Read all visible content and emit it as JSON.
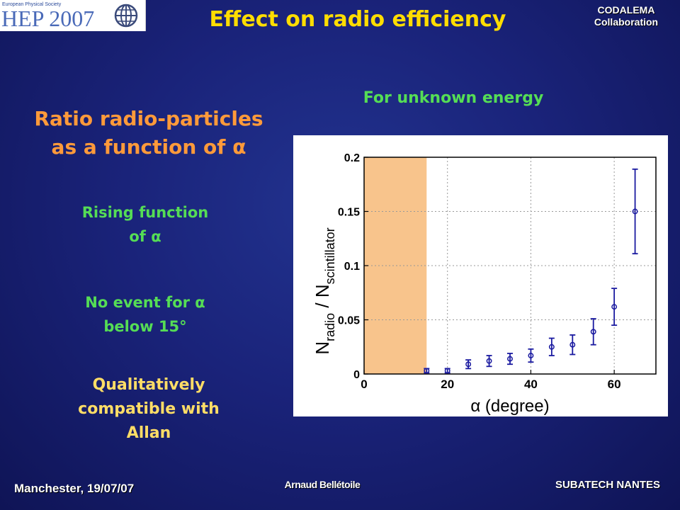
{
  "header": {
    "logo_society": "European Physical Society",
    "logo_text": "HEP 2007",
    "title": "Effect on radio efficiency",
    "collab_line1": "CODALEMA",
    "collab_line2": "Collaboration"
  },
  "left": {
    "heading_line1": "Ratio radio-particles",
    "heading_line2": "as a function of α",
    "rising_line1": "Rising function",
    "rising_line2": "of α",
    "noevent_line1": "No event for α",
    "noevent_line2": "below 15°",
    "qual_line1": "Qualitatively",
    "qual_line2": "compatible with",
    "qual_line3": "Allan"
  },
  "chart_subtitle": "For unknown energy",
  "footer": {
    "left": "Manchester, 19/07/07",
    "center": "Arnaud Bellétoile",
    "right": "SUBATECH NANTES"
  },
  "colors": {
    "title": "#ffdd00",
    "heading": "#ff9a3a",
    "green": "#55dd55",
    "marker": "#1a1aa0",
    "shade": "#f8c48c"
  },
  "chart_data": {
    "type": "scatter",
    "xlabel": "α (degree)",
    "ylabel_main": "N",
    "ylabel_sub1": "radio",
    "ylabel_mid": " / N",
    "ylabel_sub2": "scintillator",
    "xlim": [
      0,
      70
    ],
    "ylim": [
      0,
      0.2
    ],
    "xticks": [
      0,
      20,
      40,
      60
    ],
    "xtick_labels": [
      "0",
      "20",
      "40",
      "60"
    ],
    "yticks": [
      0,
      0.05,
      0.1,
      0.15,
      0.2
    ],
    "ytick_labels": [
      "0",
      "0.05",
      "0.1",
      "0.15",
      "0.2"
    ],
    "grid": true,
    "shaded_region": [
      0,
      15
    ],
    "points": [
      {
        "x": 15,
        "y": 0.003,
        "err": 0.002
      },
      {
        "x": 20,
        "y": 0.003,
        "err": 0.002
      },
      {
        "x": 25,
        "y": 0.009,
        "err": 0.004
      },
      {
        "x": 30,
        "y": 0.012,
        "err": 0.005
      },
      {
        "x": 35,
        "y": 0.014,
        "err": 0.005
      },
      {
        "x": 40,
        "y": 0.017,
        "err": 0.006
      },
      {
        "x": 45,
        "y": 0.025,
        "err": 0.008
      },
      {
        "x": 50,
        "y": 0.027,
        "err": 0.009
      },
      {
        "x": 55,
        "y": 0.039,
        "err": 0.012
      },
      {
        "x": 60,
        "y": 0.062,
        "err": 0.017
      },
      {
        "x": 65,
        "y": 0.15,
        "err": 0.039
      }
    ]
  }
}
